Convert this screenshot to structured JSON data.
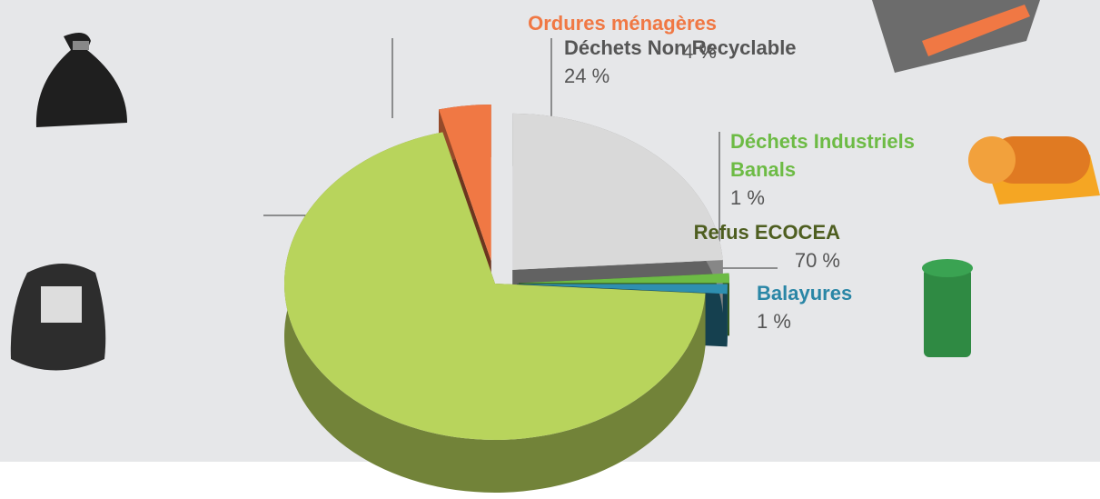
{
  "chart_data": {
    "type": "pie",
    "categories": [
      "Déchets Non Recyclable",
      "Déchets Industriels Banals",
      "Balayures",
      "Refus ECOCEA",
      "Ordures ménagères"
    ],
    "values": [
      24,
      1,
      1,
      70,
      4
    ],
    "value_labels": [
      "24 %",
      "1 %",
      "1 %",
      "70 %",
      "4 %"
    ],
    "colors": [
      "#d9d9d9",
      "#6dbb45",
      "#2e8fb0",
      "#b8d45c",
      "#f07844"
    ],
    "label_colors": [
      "#555555",
      "#6dbb45",
      "#2a86a6",
      "#4e5e20",
      "#f07844"
    ]
  }
}
